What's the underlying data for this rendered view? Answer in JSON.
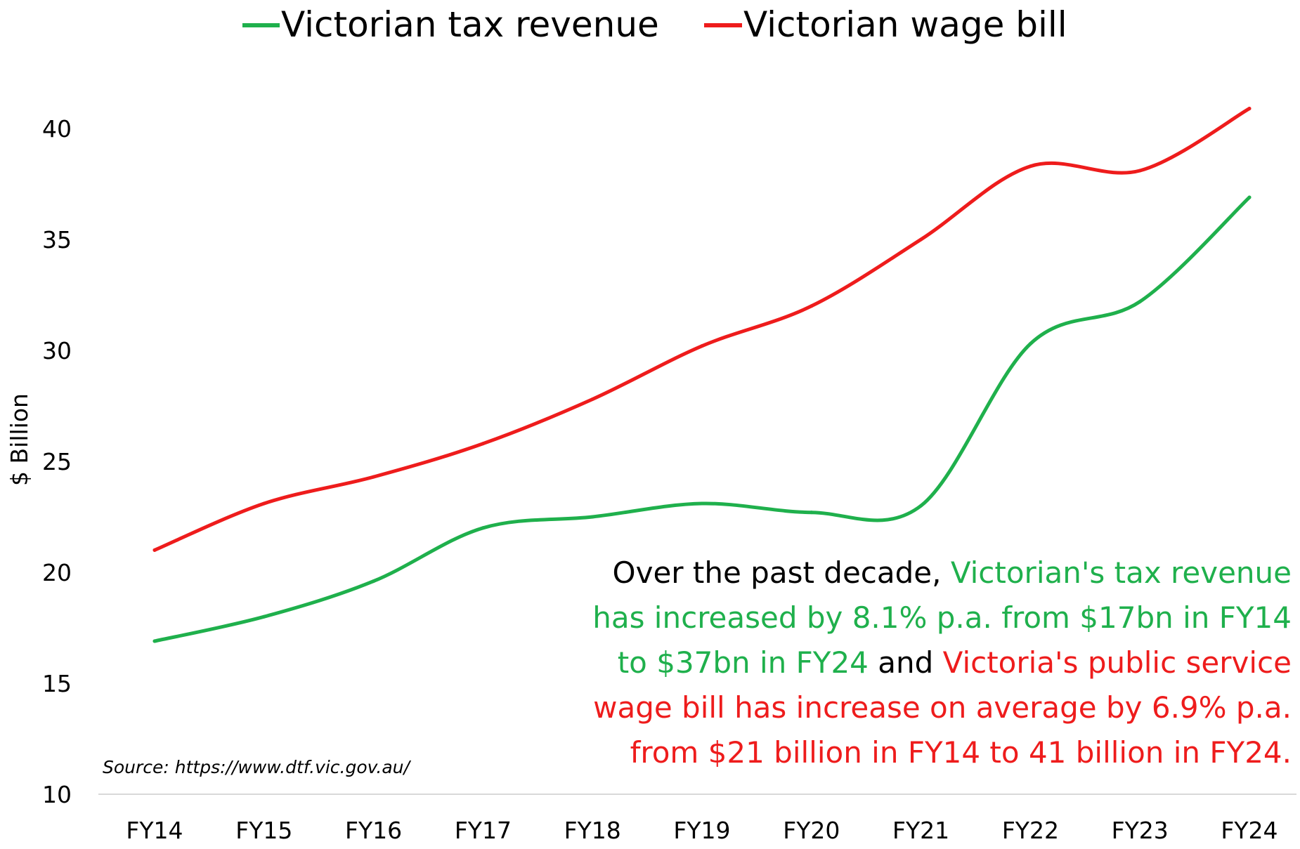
{
  "chart_data": {
    "type": "line",
    "categories": [
      "FY14",
      "FY15",
      "FY16",
      "FY17",
      "FY18",
      "FY19",
      "FY20",
      "FY21",
      "FY22",
      "FY23",
      "FY24"
    ],
    "series": [
      {
        "name": "Victorian tax revenue",
        "color": "#1fb04c",
        "values": [
          16.9,
          18.0,
          19.6,
          22.0,
          22.5,
          23.1,
          22.7,
          23.0,
          30.3,
          32.2,
          36.9
        ]
      },
      {
        "name": "Victorian wage bill",
        "color": "#ee1c1c",
        "values": [
          21.0,
          23.1,
          24.3,
          25.8,
          27.8,
          30.2,
          32.0,
          35.0,
          38.3,
          38.1,
          40.9
        ]
      }
    ],
    "ylabel": "$ Billion",
    "xlabel": "",
    "ylim": [
      10,
      40
    ],
    "yticks": [
      10,
      15,
      20,
      25,
      30,
      35,
      40
    ],
    "grid": false,
    "legend_position": "top-center",
    "source": "Source: https://www.dtf.vic.gov.au/",
    "annotation": {
      "lines": [
        [
          {
            "text": "Over the past decade, ",
            "color": "#000000"
          },
          {
            "text": "Victorian's tax revenue",
            "color": "#1fb04c"
          }
        ],
        [
          {
            "text": "has increased by 8.1% p.a. from $17bn in FY14",
            "color": "#1fb04c"
          }
        ],
        [
          {
            "text": "to $37bn in FY24",
            "color": "#1fb04c"
          },
          {
            "text": " and ",
            "color": "#000000"
          },
          {
            "text": "Victoria's public service",
            "color": "#ee1c1c"
          }
        ],
        [
          {
            "text": "wage bill has increase on average by 6.9% p.a.",
            "color": "#ee1c1c"
          }
        ],
        [
          {
            "text": "from $21 billion in FY14 to 41 billion in FY24.",
            "color": "#ee1c1c"
          }
        ]
      ]
    }
  }
}
